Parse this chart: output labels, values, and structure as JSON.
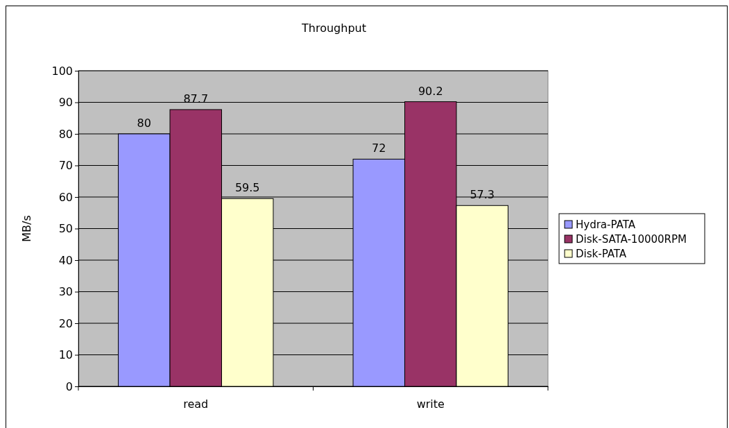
{
  "chart_data": {
    "type": "bar",
    "title": "Throughput",
    "ylabel": "MB/s",
    "categories": [
      "read",
      "write"
    ],
    "series": [
      {
        "name": "Hydra-PATA",
        "color": "#9999ff",
        "values": [
          80,
          72
        ]
      },
      {
        "name": "Disk-SATA-10000RPM",
        "color": "#993366",
        "values": [
          87.7,
          90.2
        ]
      },
      {
        "name": "Disk-PATA",
        "color": "#ffffcc",
        "values": [
          59.5,
          57.3
        ]
      }
    ],
    "ylim": [
      0,
      100
    ],
    "yticks": [
      0,
      10,
      20,
      30,
      40,
      50,
      60,
      70,
      80,
      90,
      100
    ],
    "grid": "y",
    "legend": "right",
    "data_labels": true
  }
}
